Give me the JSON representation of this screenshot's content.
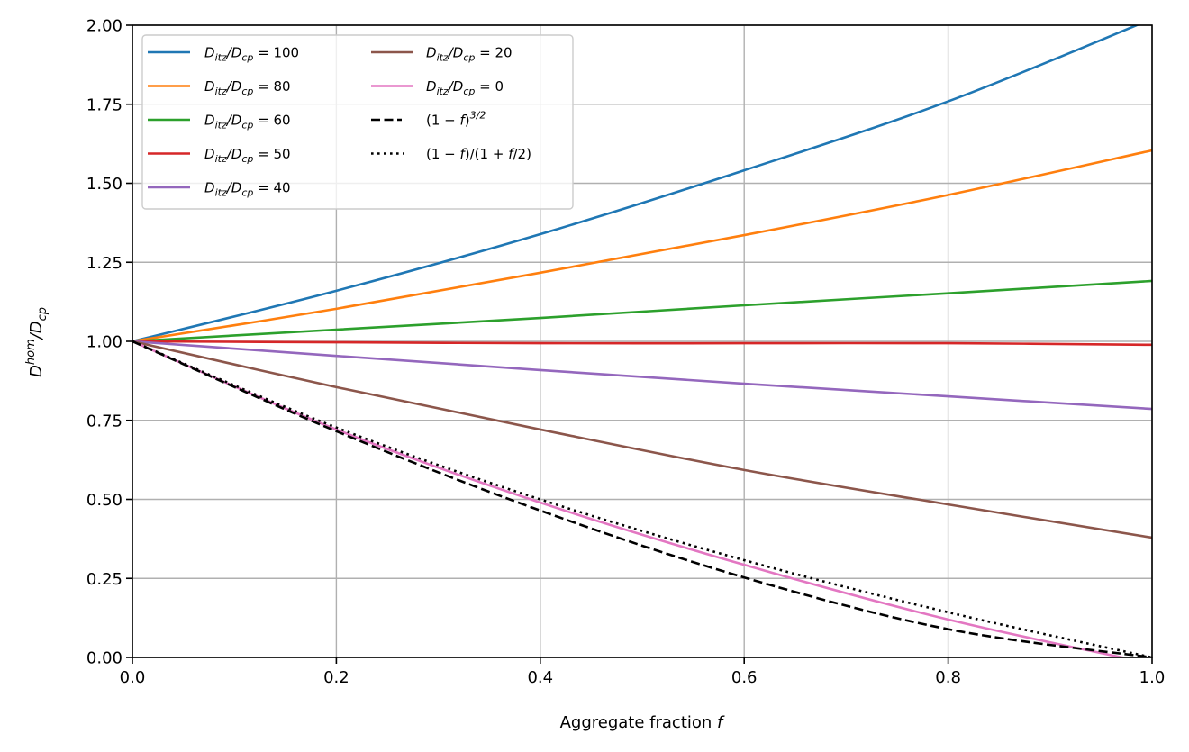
{
  "chart_data": {
    "type": "line",
    "title": "",
    "xlabel": "Aggregate fraction",
    "xlabel_var": "f",
    "ylabel_main": "D",
    "ylabel_sup": "hom",
    "ylabel_sep": "/D",
    "ylabel_sub": "cp",
    "xlim": [
      0.0,
      1.0
    ],
    "ylim": [
      0.0,
      2.0
    ],
    "xticks": [
      0.0,
      0.2,
      0.4,
      0.6,
      0.8,
      1.0
    ],
    "xtick_labels": [
      "0.0",
      "0.2",
      "0.4",
      "0.6",
      "0.8",
      "1.0"
    ],
    "yticks": [
      0.0,
      0.25,
      0.5,
      0.75,
      1.0,
      1.25,
      1.5,
      1.75,
      2.0
    ],
    "ytick_labels": [
      "0.00",
      "0.25",
      "0.50",
      "0.75",
      "1.00",
      "1.25",
      "1.50",
      "1.75",
      "2.00"
    ],
    "grid": true,
    "legend_position": "top-left",
    "legend_columns": 2,
    "x": [
      0.0,
      0.2,
      0.4,
      0.6,
      0.8,
      1.0
    ],
    "series": [
      {
        "name": "D_itz/D_cp = 100",
        "ratio_label": "100",
        "color": "#1f77b4",
        "style": "solid",
        "values": [
          1.0,
          1.16,
          1.339,
          1.541,
          1.759,
          2.02
        ]
      },
      {
        "name": "D_itz/D_cp = 80",
        "ratio_label": "80",
        "color": "#ff7f0e",
        "style": "solid",
        "values": [
          1.0,
          1.103,
          1.217,
          1.336,
          1.463,
          1.604
        ]
      },
      {
        "name": "D_itz/D_cp = 60",
        "ratio_label": "60",
        "color": "#2ca02c",
        "style": "solid",
        "values": [
          1.0,
          1.037,
          1.074,
          1.114,
          1.152,
          1.191
        ]
      },
      {
        "name": "D_itz/D_cp = 50",
        "ratio_label": "50",
        "color": "#d62728",
        "style": "solid",
        "values": [
          1.0,
          0.997,
          0.994,
          0.994,
          0.994,
          0.989
        ]
      },
      {
        "name": "D_itz/D_cp = 40",
        "ratio_label": "40",
        "color": "#9467bd",
        "style": "solid",
        "values": [
          1.0,
          0.954,
          0.909,
          0.866,
          0.826,
          0.786
        ]
      },
      {
        "name": "D_itz/D_cp = 20",
        "ratio_label": "20",
        "color": "#8c564b",
        "style": "solid",
        "values": [
          1.0,
          0.855,
          0.721,
          0.593,
          0.484,
          0.379
        ]
      },
      {
        "name": "D_itz/D_cp = 0",
        "ratio_label": "0",
        "color": "#e377c2",
        "style": "solid",
        "values": [
          1.0,
          0.721,
          0.49,
          0.293,
          0.12,
          -0.02
        ]
      },
      {
        "name": "(1 - f)^{3/2}",
        "formula": "dashed",
        "color": "#000000",
        "style": "dashed",
        "values": [
          1.0,
          0.7155,
          0.4648,
          0.253,
          0.0894,
          0.0
        ]
      },
      {
        "name": "(1 - f)/(1 + f/2)",
        "formula": "dotted",
        "color": "#000000",
        "style": "dotted",
        "values": [
          1.0,
          0.7273,
          0.5,
          0.3077,
          0.1429,
          0.0
        ]
      }
    ],
    "legend": {
      "prefix_D": "D",
      "sub_itz": "itz",
      "sep": "/D",
      "sub_cp": "cp",
      "eq": " = ",
      "formula1_base": "(1 − ",
      "formula1_var": "f",
      "formula1_close": ")",
      "formula1_sup": "3/2",
      "formula2_a": "(1 − ",
      "formula2_var1": "f",
      "formula2_b": ")/(1 + ",
      "formula2_var2": "f",
      "formula2_c": "/2)"
    }
  }
}
